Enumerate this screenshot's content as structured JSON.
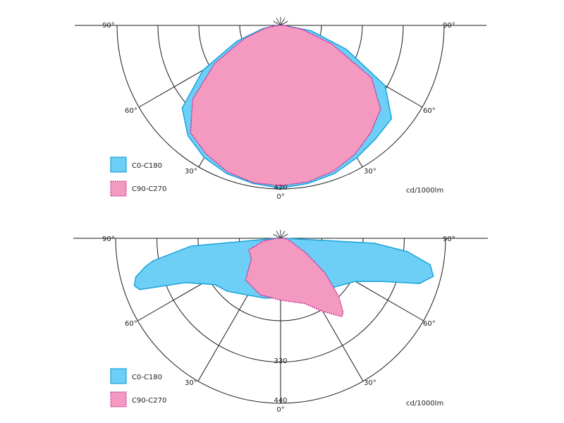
{
  "chart_data": [
    {
      "type": "polar",
      "unit_label": "cd/1000lm",
      "radial_max": 420,
      "radial_tick_labels": [
        "420"
      ],
      "angle_labels": {
        "left": [
          "90°",
          "60°",
          "30°"
        ],
        "right": [
          "90°",
          "60°",
          "30°"
        ],
        "bottom": "0°"
      },
      "series": [
        {
          "name": "C0-C180",
          "color": "#6dcff6",
          "stroke": "#1aa3d9",
          "style": "solid",
          "points": [
            [
              -90,
              8
            ],
            [
              -80,
              45
            ],
            [
              -70,
              120
            ],
            [
              -60,
              230
            ],
            [
              -50,
              330
            ],
            [
              -40,
              370
            ],
            [
              -30,
              392
            ],
            [
              -20,
              405
            ],
            [
              -10,
              412
            ],
            [
              0,
              418
            ],
            [
              10,
              412
            ],
            [
              20,
              405
            ],
            [
              30,
              392
            ],
            [
              40,
              380
            ],
            [
              50,
              372
            ],
            [
              60,
              310
            ],
            [
              70,
              180
            ],
            [
              80,
              80
            ],
            [
              90,
              8
            ]
          ]
        },
        {
          "name": "C90-C270",
          "color": "#f49ac1",
          "stroke": "#c2148c",
          "style": "dotted",
          "points": [
            [
              -90,
              8
            ],
            [
              -80,
              40
            ],
            [
              -70,
              100
            ],
            [
              -60,
              195
            ],
            [
              -50,
              295
            ],
            [
              -40,
              360
            ],
            [
              -30,
              382
            ],
            [
              -20,
              400
            ],
            [
              -10,
              410
            ],
            [
              0,
              412
            ],
            [
              10,
              408
            ],
            [
              20,
              398
            ],
            [
              30,
              382
            ],
            [
              40,
              360
            ],
            [
              50,
              335
            ],
            [
              60,
              270
            ],
            [
              70,
              140
            ],
            [
              80,
              55
            ],
            [
              90,
              8
            ]
          ]
        }
      ]
    },
    {
      "type": "polar",
      "unit_label": "cd/1000lm",
      "radial_max": 440,
      "radial_tick_labels": [
        "330",
        "440"
      ],
      "angle_labels": {
        "left": [
          "90°",
          "60°",
          "30°"
        ],
        "right": [
          "90°",
          "60°",
          "30°"
        ],
        "bottom": "0°"
      },
      "series": [
        {
          "name": "C0-C180",
          "color": "#6dcff6",
          "stroke": "#1aa3d9",
          "style": "solid",
          "points": [
            [
              -90,
              12
            ],
            [
              -85,
              240
            ],
            [
              -80,
              345
            ],
            [
              -78,
              370
            ],
            [
              -75,
              400
            ],
            [
              -72,
              410
            ],
            [
              -70,
              400
            ],
            [
              -65,
              280
            ],
            [
              -55,
              215
            ],
            [
              -45,
              200
            ],
            [
              -30,
              175
            ],
            [
              -15,
              165
            ],
            [
              0,
              158
            ],
            [
              20,
              165
            ],
            [
              40,
              180
            ],
            [
              60,
              230
            ],
            [
              67,
              295
            ],
            [
              72,
              390
            ],
            [
              76,
              420
            ],
            [
              80,
              405
            ],
            [
              84,
              340
            ],
            [
              87,
              250
            ],
            [
              90,
              12
            ]
          ]
        },
        {
          "name": "C90-C270",
          "color": "#f49ac1",
          "stroke": "#c2148c",
          "style": "dotted",
          "points": [
            [
              -90,
              12
            ],
            [
              -80,
              48
            ],
            [
              -70,
              90
            ],
            [
              -55,
              95
            ],
            [
              -40,
              145
            ],
            [
              -20,
              160
            ],
            [
              0,
              165
            ],
            [
              20,
              185
            ],
            [
              30,
              225
            ],
            [
              38,
              265
            ],
            [
              40,
              260
            ],
            [
              45,
              220
            ],
            [
              52,
              150
            ],
            [
              60,
              78
            ],
            [
              75,
              25
            ],
            [
              90,
              12
            ]
          ]
        }
      ]
    }
  ]
}
